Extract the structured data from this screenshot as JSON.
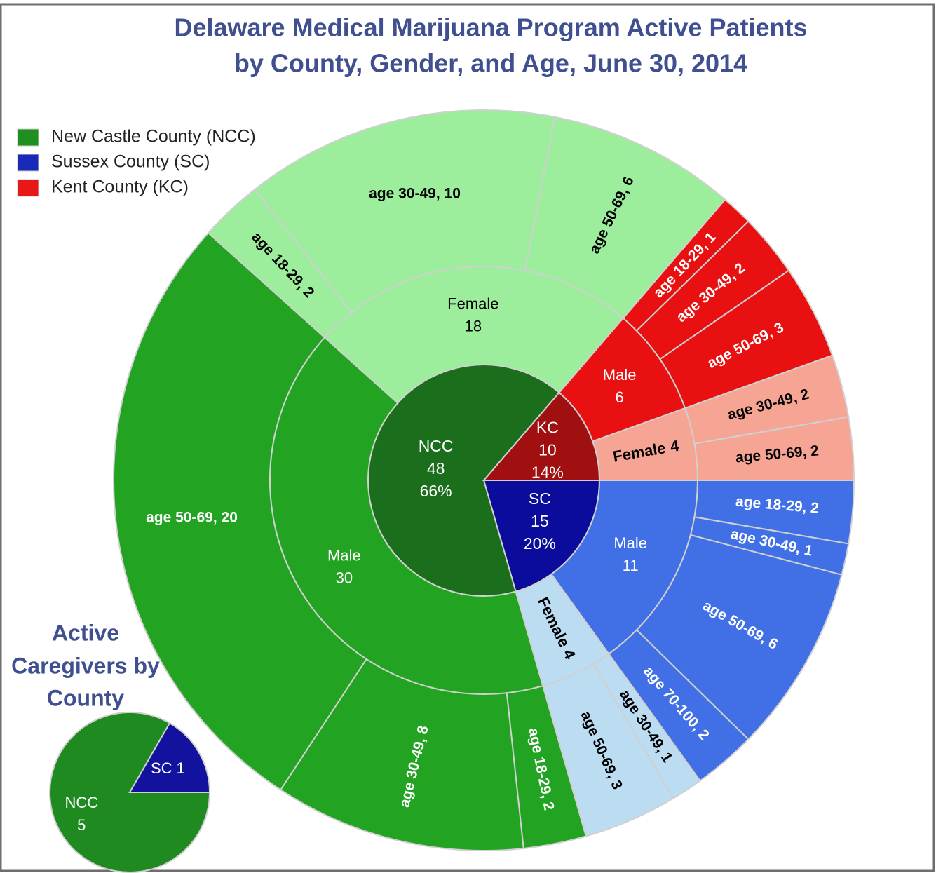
{
  "chart_data": [
    {
      "type": "sunburst",
      "title": [
        "Delaware Medical Marijuana Program Active Patients",
        "by County, Gender, and Age, June 30, 2014"
      ],
      "legend": [
        {
          "label": "New Castle County (NCC)",
          "color": "#1f8f1f"
        },
        {
          "label": "Sussex County (SC)",
          "color": "#1a2ab8"
        },
        {
          "label": "Kent County (KC)",
          "color": "#e81818"
        }
      ],
      "counties": [
        {
          "name": "SC",
          "value": 15,
          "share_label": "20%",
          "color": "#0c0c9c",
          "children": [
            {
              "name": "Male",
              "value": 11,
              "color": "#4170e6",
              "children": [
                {
                  "label": "age 18-29, 2",
                  "value": 2
                },
                {
                  "label": "age 30-49, 1",
                  "value": 1
                },
                {
                  "label": "age 50-69, 6",
                  "value": 6
                },
                {
                  "label": "age 70-100, 2",
                  "value": 2
                }
              ]
            },
            {
              "name": "Female",
              "value": 4,
              "color": "#bcdcf2",
              "children": [
                {
                  "label": "age 30-49, 1",
                  "value": 1
                },
                {
                  "label": "age 50-69, 3",
                  "value": 3
                }
              ]
            }
          ]
        },
        {
          "name": "NCC",
          "value": 48,
          "share_label": "66%",
          "color": "#1b6e1b",
          "children": [
            {
              "name": "Male",
              "value": 30,
              "color": "#22a322",
              "children": [
                {
                  "label": "age 18-29, 2",
                  "value": 2
                },
                {
                  "label": "age 30-49, 8",
                  "value": 8
                },
                {
                  "label": "age 50-69, 20",
                  "value": 20
                }
              ]
            },
            {
              "name": "Female",
              "value": 18,
              "color": "#9cee9c",
              "children": [
                {
                  "label": "age 18-29, 2",
                  "value": 2
                },
                {
                  "label": "age 30-49, 10",
                  "value": 10
                },
                {
                  "label": "age 50-69, 6",
                  "value": 6
                }
              ]
            }
          ]
        },
        {
          "name": "KC",
          "value": 10,
          "share_label": "14%",
          "color": "#a01010",
          "children": [
            {
              "name": "Male",
              "value": 6,
              "color": "#e81010",
              "children": [
                {
                  "label": "age 18-29, 1",
                  "value": 1
                },
                {
                  "label": "age 30-49, 2",
                  "value": 2
                },
                {
                  "label": "age 50-69, 3",
                  "value": 3
                }
              ]
            },
            {
              "name": "Female",
              "value": 4,
              "color": "#f6a494",
              "children": [
                {
                  "label": "age 30-49, 2",
                  "value": 2
                },
                {
                  "label": "age 50-69, 2",
                  "value": 2
                }
              ]
            }
          ]
        }
      ]
    },
    {
      "type": "pie",
      "title": [
        "Active",
        "Caregivers by",
        "County"
      ],
      "slices": [
        {
          "name": "NCC",
          "value": 5,
          "color": "#1f8a1f"
        },
        {
          "name": "SC",
          "value": 1,
          "color": "#12129e"
        }
      ]
    }
  ]
}
